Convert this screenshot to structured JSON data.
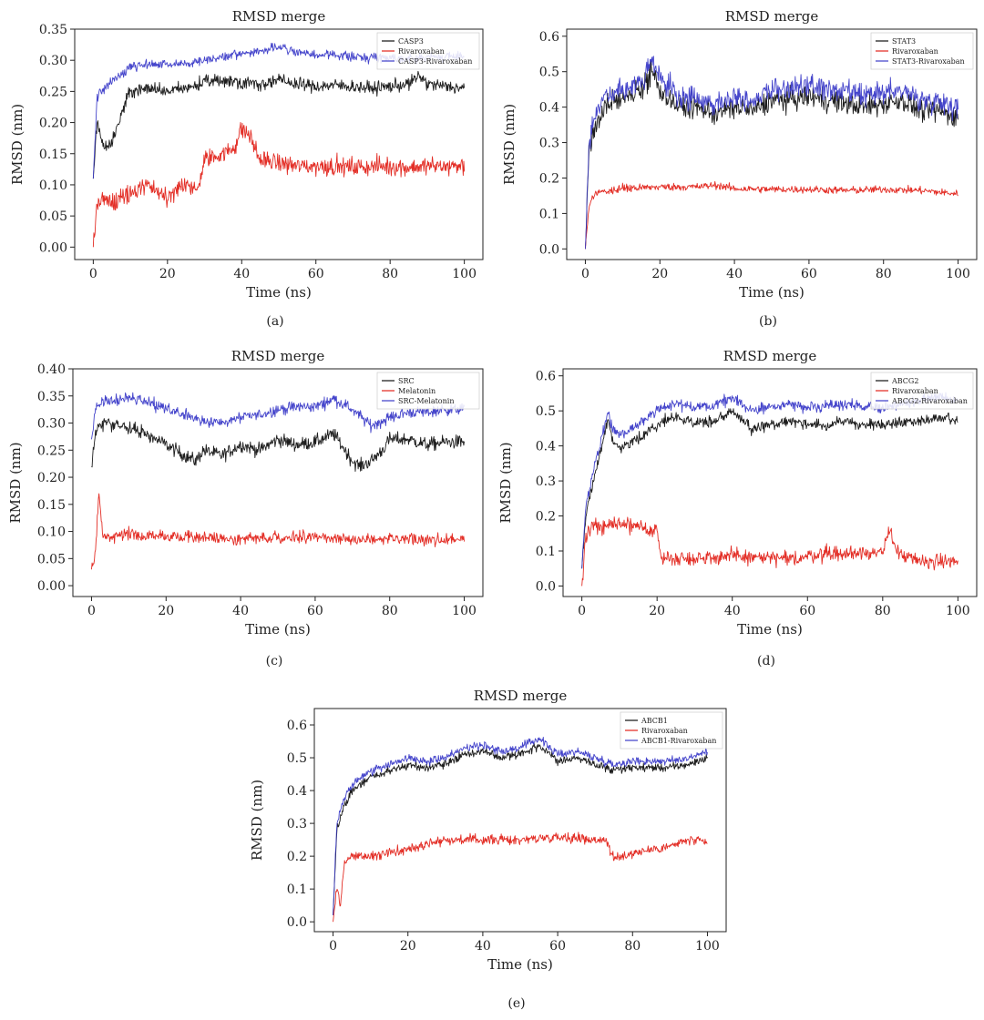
{
  "figure": {
    "panel_labels": [
      "(a)",
      "(b)",
      "(c)",
      "(d)",
      "(e)"
    ]
  },
  "chart_data": [
    {
      "id": "a",
      "type": "line",
      "title": "RMSD merge",
      "xlabel": "Time (ns)",
      "ylabel": "RMSD (nm)",
      "xlim": [
        -5,
        105
      ],
      "ylim": [
        -0.02,
        0.35
      ],
      "xticks": [
        0,
        20,
        40,
        60,
        80,
        100
      ],
      "xtick_labels": [
        "0",
        "20",
        "40",
        "60",
        "80",
        "100"
      ],
      "yticks": [
        0,
        0.05,
        0.1,
        0.15,
        0.2,
        0.25,
        0.3,
        0.35
      ],
      "ytick_labels": [
        "0.00",
        "0.05",
        "0.10",
        "0.15",
        "0.20",
        "0.25",
        "0.30",
        "0.35"
      ],
      "legend_position": "top-right",
      "series": [
        {
          "name": "CASP3",
          "color": "#111111",
          "x": [
            0,
            1,
            2,
            3,
            5,
            7,
            9,
            10,
            15,
            20,
            25,
            30,
            35,
            40,
            45,
            50,
            55,
            60,
            65,
            70,
            75,
            80,
            85,
            88,
            90,
            95,
            100
          ],
          "y": [
            0.11,
            0.2,
            0.18,
            0.16,
            0.17,
            0.2,
            0.24,
            0.25,
            0.255,
            0.25,
            0.255,
            0.265,
            0.268,
            0.265,
            0.262,
            0.268,
            0.262,
            0.258,
            0.26,
            0.258,
            0.255,
            0.258,
            0.262,
            0.275,
            0.262,
            0.258,
            0.255
          ],
          "noise": 0.01
        },
        {
          "name": "Rivaroxaban",
          "color": "#e2231a",
          "x": [
            0,
            1,
            3,
            5,
            10,
            15,
            20,
            22,
            25,
            28,
            30,
            32,
            35,
            38,
            40,
            42,
            45,
            50,
            55,
            60,
            65,
            70,
            75,
            80,
            85,
            90,
            95,
            100
          ],
          "y": [
            0.0,
            0.07,
            0.075,
            0.07,
            0.085,
            0.1,
            0.08,
            0.09,
            0.1,
            0.09,
            0.14,
            0.145,
            0.15,
            0.16,
            0.19,
            0.18,
            0.14,
            0.135,
            0.13,
            0.13,
            0.13,
            0.128,
            0.13,
            0.13,
            0.128,
            0.13,
            0.13,
            0.13
          ],
          "noise": 0.014
        },
        {
          "name": "CASP3-Rivaroxaban",
          "color": "#3b3bc8",
          "x": [
            0,
            1,
            2,
            4,
            6,
            8,
            10,
            15,
            20,
            25,
            30,
            35,
            40,
            45,
            50,
            55,
            60,
            65,
            70,
            75,
            80,
            85,
            90,
            95,
            100
          ],
          "y": [
            0.11,
            0.24,
            0.25,
            0.26,
            0.27,
            0.28,
            0.29,
            0.293,
            0.293,
            0.295,
            0.3,
            0.305,
            0.31,
            0.315,
            0.322,
            0.312,
            0.308,
            0.31,
            0.305,
            0.305,
            0.305,
            0.302,
            0.305,
            0.305,
            0.308
          ],
          "noise": 0.007
        }
      ]
    },
    {
      "id": "b",
      "type": "line",
      "title": "RMSD merge",
      "xlabel": "Time (ns)",
      "ylabel": "RMSD (nm)",
      "xlim": [
        -5,
        105
      ],
      "ylim": [
        -0.03,
        0.62
      ],
      "xticks": [
        0,
        20,
        40,
        60,
        80,
        100
      ],
      "xtick_labels": [
        "0",
        "20",
        "40",
        "60",
        "80",
        "100"
      ],
      "yticks": [
        0,
        0.1,
        0.2,
        0.3,
        0.4,
        0.5,
        0.6
      ],
      "ytick_labels": [
        "0.0",
        "0.1",
        "0.2",
        "0.3",
        "0.4",
        "0.5",
        "0.6"
      ],
      "legend_position": "top-right",
      "series": [
        {
          "name": "STAT3",
          "color": "#111111",
          "x": [
            0,
            1,
            2,
            5,
            10,
            15,
            18,
            20,
            25,
            30,
            35,
            40,
            45,
            50,
            55,
            60,
            65,
            70,
            75,
            80,
            85,
            90,
            95,
            100
          ],
          "y": [
            0.0,
            0.28,
            0.32,
            0.4,
            0.43,
            0.45,
            0.5,
            0.45,
            0.4,
            0.4,
            0.38,
            0.4,
            0.39,
            0.42,
            0.42,
            0.43,
            0.42,
            0.41,
            0.4,
            0.41,
            0.42,
            0.39,
            0.39,
            0.37
          ],
          "noise": 0.03
        },
        {
          "name": "Rivaroxaban",
          "color": "#e2231a",
          "x": [
            0,
            1,
            2,
            4,
            10,
            20,
            30,
            35,
            40,
            50,
            60,
            70,
            80,
            90,
            100
          ],
          "y": [
            0.0,
            0.12,
            0.15,
            0.16,
            0.17,
            0.175,
            0.175,
            0.18,
            0.17,
            0.168,
            0.168,
            0.165,
            0.168,
            0.165,
            0.155
          ],
          "noise": 0.01
        },
        {
          "name": "STAT3-Rivaroxaban",
          "color": "#3b3bc8",
          "x": [
            0,
            1,
            2,
            5,
            10,
            15,
            18,
            20,
            25,
            30,
            35,
            40,
            45,
            50,
            55,
            60,
            65,
            70,
            75,
            80,
            85,
            90,
            95,
            100
          ],
          "y": [
            0.0,
            0.3,
            0.35,
            0.43,
            0.45,
            0.47,
            0.53,
            0.48,
            0.43,
            0.42,
            0.41,
            0.43,
            0.42,
            0.45,
            0.45,
            0.46,
            0.45,
            0.44,
            0.43,
            0.44,
            0.45,
            0.42,
            0.42,
            0.4
          ],
          "noise": 0.03
        }
      ]
    },
    {
      "id": "c",
      "type": "line",
      "title": "RMSD merge",
      "xlabel": "Time (ns)",
      "ylabel": "RMSD (nm)",
      "xlim": [
        -5,
        105
      ],
      "ylim": [
        -0.02,
        0.4
      ],
      "xticks": [
        0,
        20,
        40,
        60,
        80,
        100
      ],
      "xtick_labels": [
        "0",
        "20",
        "40",
        "60",
        "80",
        "100"
      ],
      "yticks": [
        0,
        0.05,
        0.1,
        0.15,
        0.2,
        0.25,
        0.3,
        0.35,
        0.4
      ],
      "ytick_labels": [
        "0.00",
        "0.05",
        "0.10",
        "0.15",
        "0.20",
        "0.25",
        "0.30",
        "0.35",
        "0.40"
      ],
      "legend_position": "top-right",
      "series": [
        {
          "name": "SRC",
          "color": "#111111",
          "x": [
            0,
            1,
            2,
            5,
            10,
            15,
            20,
            25,
            28,
            30,
            35,
            40,
            45,
            50,
            55,
            60,
            65,
            70,
            72,
            75,
            78,
            80,
            85,
            90,
            95,
            100
          ],
          "y": [
            0.22,
            0.28,
            0.3,
            0.3,
            0.29,
            0.28,
            0.26,
            0.24,
            0.23,
            0.25,
            0.24,
            0.26,
            0.25,
            0.27,
            0.26,
            0.265,
            0.28,
            0.23,
            0.22,
            0.23,
            0.25,
            0.27,
            0.27,
            0.26,
            0.265,
            0.265
          ],
          "noise": 0.012
        },
        {
          "name": "Melatonin",
          "color": "#e2231a",
          "x": [
            0,
            1,
            2,
            3,
            5,
            10,
            20,
            30,
            40,
            50,
            60,
            70,
            80,
            90,
            100
          ],
          "y": [
            0.03,
            0.06,
            0.17,
            0.09,
            0.09,
            0.095,
            0.09,
            0.09,
            0.085,
            0.09,
            0.09,
            0.085,
            0.085,
            0.085,
            0.085
          ],
          "noise": 0.01
        },
        {
          "name": "SRC-Melatonin",
          "color": "#3b3bc8",
          "x": [
            0,
            1,
            2,
            5,
            10,
            15,
            20,
            25,
            30,
            35,
            40,
            45,
            50,
            55,
            60,
            65,
            70,
            75,
            80,
            85,
            90,
            95,
            100
          ],
          "y": [
            0.27,
            0.32,
            0.335,
            0.34,
            0.345,
            0.34,
            0.325,
            0.315,
            0.305,
            0.3,
            0.31,
            0.315,
            0.325,
            0.33,
            0.33,
            0.345,
            0.325,
            0.295,
            0.31,
            0.32,
            0.32,
            0.325,
            0.325
          ],
          "noise": 0.01
        }
      ]
    },
    {
      "id": "d",
      "type": "line",
      "title": "RMSD merge",
      "xlabel": "Time (ns)",
      "ylabel": "RMSD (nm)",
      "xlim": [
        -5,
        105
      ],
      "ylim": [
        -0.03,
        0.62
      ],
      "xticks": [
        0,
        20,
        40,
        60,
        80,
        100
      ],
      "xtick_labels": [
        "0",
        "20",
        "40",
        "60",
        "80",
        "100"
      ],
      "yticks": [
        0,
        0.1,
        0.2,
        0.3,
        0.4,
        0.5,
        0.6
      ],
      "ytick_labels": [
        "0.0",
        "0.1",
        "0.2",
        "0.3",
        "0.4",
        "0.5",
        "0.6"
      ],
      "legend_position": "top-right",
      "series": [
        {
          "name": "ABCG2",
          "color": "#111111",
          "x": [
            0,
            1,
            3,
            5,
            7,
            8,
            10,
            15,
            20,
            25,
            30,
            35,
            40,
            45,
            50,
            55,
            60,
            65,
            70,
            75,
            80,
            85,
            90,
            95,
            100
          ],
          "y": [
            0.05,
            0.2,
            0.3,
            0.38,
            0.48,
            0.42,
            0.39,
            0.42,
            0.46,
            0.48,
            0.47,
            0.47,
            0.5,
            0.45,
            0.46,
            0.47,
            0.46,
            0.46,
            0.47,
            0.46,
            0.46,
            0.47,
            0.47,
            0.48,
            0.47
          ],
          "noise": 0.015
        },
        {
          "name": "Rivaroxaban",
          "color": "#e2231a",
          "x": [
            0,
            1,
            3,
            5,
            10,
            15,
            20,
            21,
            23,
            30,
            40,
            50,
            55,
            60,
            65,
            70,
            75,
            80,
            82,
            83,
            85,
            90,
            95,
            100
          ],
          "y": [
            0.0,
            0.14,
            0.17,
            0.17,
            0.18,
            0.165,
            0.16,
            0.08,
            0.08,
            0.08,
            0.085,
            0.08,
            0.075,
            0.085,
            0.095,
            0.09,
            0.1,
            0.09,
            0.17,
            0.12,
            0.085,
            0.07,
            0.07,
            0.07
          ],
          "noise": 0.02
        },
        {
          "name": "ABCG2-Rivaroxaban",
          "color": "#3b3bc8",
          "x": [
            0,
            1,
            3,
            5,
            7,
            8,
            10,
            15,
            20,
            25,
            30,
            35,
            40,
            45,
            50,
            55,
            60,
            65,
            70,
            75,
            80,
            85,
            90,
            95,
            100
          ],
          "y": [
            0.05,
            0.22,
            0.33,
            0.41,
            0.5,
            0.45,
            0.43,
            0.46,
            0.5,
            0.52,
            0.51,
            0.51,
            0.54,
            0.5,
            0.51,
            0.52,
            0.51,
            0.51,
            0.52,
            0.51,
            0.51,
            0.52,
            0.53,
            0.54,
            0.53
          ],
          "noise": 0.015
        }
      ]
    },
    {
      "id": "e",
      "type": "line",
      "title": "RMSD merge",
      "xlabel": "Time (ns)",
      "ylabel": "RMSD (nm)",
      "xlim": [
        -5,
        105
      ],
      "ylim": [
        -0.03,
        0.65
      ],
      "xticks": [
        0,
        20,
        40,
        60,
        80,
        100
      ],
      "xtick_labels": [
        "0",
        "20",
        "40",
        "60",
        "80",
        "100"
      ],
      "yticks": [
        0,
        0.1,
        0.2,
        0.3,
        0.4,
        0.5,
        0.6
      ],
      "ytick_labels": [
        "0.0",
        "0.1",
        "0.2",
        "0.3",
        "0.4",
        "0.5",
        "0.6"
      ],
      "legend_position": "top-right",
      "series": [
        {
          "name": "ABCB1",
          "color": "#111111",
          "x": [
            0,
            1,
            3,
            5,
            10,
            15,
            20,
            25,
            30,
            35,
            40,
            45,
            50,
            55,
            60,
            65,
            70,
            75,
            80,
            85,
            90,
            95,
            100
          ],
          "y": [
            0.02,
            0.28,
            0.35,
            0.4,
            0.44,
            0.46,
            0.48,
            0.47,
            0.48,
            0.51,
            0.52,
            0.5,
            0.51,
            0.54,
            0.49,
            0.5,
            0.48,
            0.46,
            0.47,
            0.47,
            0.47,
            0.48,
            0.5
          ],
          "noise": 0.012
        },
        {
          "name": "Rivaroxaban",
          "color": "#e2231a",
          "x": [
            0,
            1,
            2,
            3,
            5,
            10,
            15,
            20,
            25,
            30,
            40,
            50,
            60,
            70,
            73,
            75,
            80,
            85,
            90,
            95,
            100
          ],
          "y": [
            0.0,
            0.1,
            0.05,
            0.18,
            0.2,
            0.2,
            0.21,
            0.22,
            0.24,
            0.25,
            0.25,
            0.25,
            0.26,
            0.25,
            0.25,
            0.19,
            0.21,
            0.22,
            0.23,
            0.25,
            0.24
          ],
          "noise": 0.014
        },
        {
          "name": "ABCB1-Rivaroxaban",
          "color": "#3b3bc8",
          "x": [
            0,
            1,
            3,
            5,
            10,
            15,
            20,
            25,
            30,
            35,
            40,
            45,
            50,
            55,
            60,
            65,
            70,
            75,
            80,
            85,
            90,
            95,
            100
          ],
          "y": [
            0.02,
            0.3,
            0.38,
            0.42,
            0.46,
            0.48,
            0.5,
            0.49,
            0.5,
            0.53,
            0.54,
            0.52,
            0.53,
            0.56,
            0.51,
            0.52,
            0.5,
            0.48,
            0.49,
            0.49,
            0.49,
            0.5,
            0.52
          ],
          "noise": 0.012
        }
      ]
    }
  ]
}
